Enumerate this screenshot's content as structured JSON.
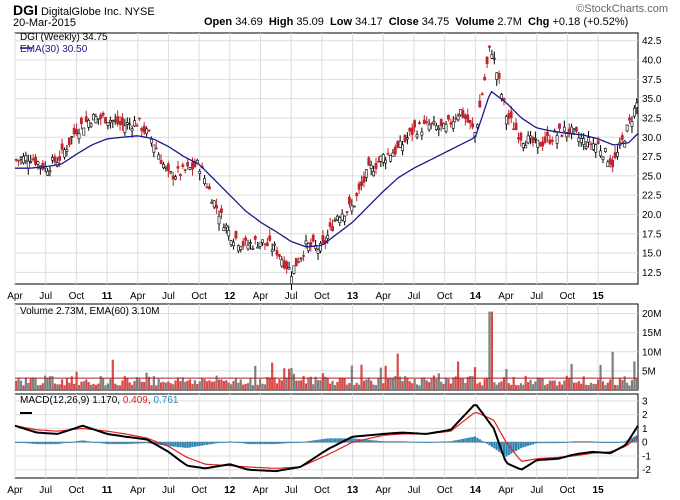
{
  "header": {
    "symbol": "DGI",
    "company": "DigitalGlobe Inc.",
    "exchange": "NYSE",
    "date": "20-Mar-2015",
    "watermark": "©StockCharts.com",
    "quote": {
      "open_label": "Open",
      "open": "34.69",
      "high_label": "High",
      "high": "35.09",
      "low_label": "Low",
      "low": "34.17",
      "close_label": "Close",
      "close": "34.75",
      "volume_label": "Volume",
      "volume": "2.7M",
      "chg_label": "Chg",
      "chg": "+0.18 (+0.52%)"
    }
  },
  "colors": {
    "up": "#000000",
    "down": "#c0242c",
    "ema": "#1a1a8c",
    "vol_up": "#7f7f7f",
    "vol_down": "#d94a4a",
    "macd": "#000000",
    "signal": "#e02020",
    "hist": "#2f86b5",
    "grid": "#dcdcdc"
  },
  "chart_data": [
    {
      "type": "candlestick",
      "title": "DGI (Weekly) 34.75",
      "legend": [
        "DGI (Weekly) 34.75",
        "EMA(30) 30.50"
      ],
      "y_ticks": [
        "12.5",
        "15.0",
        "17.5",
        "20.0",
        "22.5",
        "25.0",
        "27.5",
        "30.0",
        "32.5",
        "35.0",
        "37.5",
        "40.0",
        "42.5"
      ],
      "y_range": [
        11.0,
        43.5
      ],
      "x_ticks": [
        "Apr",
        "Jul",
        "Oct",
        "11",
        "Apr",
        "Jul",
        "Oct",
        "12",
        "Apr",
        "Jul",
        "Oct",
        "13",
        "Apr",
        "Jul",
        "Oct",
        "14",
        "Apr",
        "Jul",
        "Oct",
        "15"
      ],
      "x_range": [
        0,
        20.3
      ],
      "ema_period": 30,
      "grid": true,
      "close_points": [
        [
          0,
          27.0
        ],
        [
          0.5,
          27.5
        ],
        [
          1,
          26.0
        ],
        [
          1.5,
          27.5
        ],
        [
          2,
          31.0
        ],
        [
          2.5,
          32.5
        ],
        [
          3,
          32.5
        ],
        [
          3.5,
          31.5
        ],
        [
          4,
          32.0
        ],
        [
          4.5,
          29.5
        ],
        [
          5,
          25.0
        ],
        [
          5.5,
          25.5
        ],
        [
          6,
          26.5
        ],
        [
          6.5,
          21.5
        ],
        [
          7,
          17.5
        ],
        [
          7.5,
          16.0
        ],
        [
          8,
          16.5
        ],
        [
          8.5,
          15.5
        ],
        [
          9,
          12.5
        ],
        [
          9.5,
          16.0
        ],
        [
          10,
          15.5
        ],
        [
          10.5,
          20.0
        ],
        [
          11,
          21.0
        ],
        [
          11.5,
          25.5
        ],
        [
          12,
          27.5
        ],
        [
          12.5,
          28.5
        ],
        [
          13,
          31.0
        ],
        [
          13.5,
          31.5
        ],
        [
          14,
          31.0
        ],
        [
          14.5,
          33.5
        ],
        [
          15,
          30.5
        ],
        [
          15.5,
          42.0
        ],
        [
          16,
          33.0
        ],
        [
          16.5,
          30.0
        ],
        [
          17,
          29.0
        ],
        [
          17.5,
          30.0
        ],
        [
          18,
          31.0
        ],
        [
          18.5,
          29.5
        ],
        [
          19,
          29.0
        ],
        [
          19.5,
          26.5
        ],
        [
          20,
          31.5
        ],
        [
          20.3,
          34.75
        ]
      ],
      "ema_points": [
        [
          0,
          26.0
        ],
        [
          0.5,
          26.0
        ],
        [
          1,
          26.2
        ],
        [
          1.5,
          26.5
        ],
        [
          2,
          27.8
        ],
        [
          2.5,
          29.0
        ],
        [
          3,
          29.8
        ],
        [
          3.5,
          30.0
        ],
        [
          4,
          30.2
        ],
        [
          4.5,
          29.8
        ],
        [
          5,
          28.8
        ],
        [
          5.5,
          27.5
        ],
        [
          6,
          26.5
        ],
        [
          6.5,
          24.5
        ],
        [
          7,
          22.5
        ],
        [
          7.5,
          20.5
        ],
        [
          8,
          19.0
        ],
        [
          8.5,
          17.8
        ],
        [
          9,
          16.5
        ],
        [
          9.5,
          15.8
        ],
        [
          10,
          16.0
        ],
        [
          10.5,
          17.5
        ],
        [
          11,
          19.0
        ],
        [
          11.5,
          21.0
        ],
        [
          12,
          23.0
        ],
        [
          12.5,
          24.8
        ],
        [
          13,
          26.0
        ],
        [
          13.5,
          27.0
        ],
        [
          14,
          28.0
        ],
        [
          14.5,
          29.0
        ],
        [
          15,
          30.0
        ],
        [
          15.5,
          36.0
        ],
        [
          16,
          34.5
        ],
        [
          16.5,
          32.5
        ],
        [
          17,
          31.2
        ],
        [
          17.5,
          30.8
        ],
        [
          18,
          30.5
        ],
        [
          18.5,
          30.3
        ],
        [
          19,
          29.8
        ],
        [
          19.5,
          29.0
        ],
        [
          20,
          29.3
        ],
        [
          20.3,
          30.5
        ]
      ]
    },
    {
      "type": "bar",
      "title": "Volume 2.73M, EMA(60) 3.10M",
      "y_ticks": [
        "5M",
        "10M",
        "15M",
        "20M"
      ],
      "y_range": [
        0,
        22.5
      ],
      "unit": "M",
      "peak_points": [
        [
          15.0,
          6.0
        ],
        [
          15.5,
          20.5
        ],
        [
          16.0,
          5.5
        ],
        [
          12.5,
          9.5
        ],
        [
          19.5,
          10.0
        ],
        [
          20.2,
          7.5
        ]
      ],
      "ema_level": 3.1
    },
    {
      "type": "line",
      "title": "MACD(12,26,9) 1.170, 0.409, 0.761",
      "legend": [
        "MACD(12,26,9) 1.170",
        "0.409",
        "0.761"
      ],
      "y_ticks": [
        "3",
        "2",
        "1",
        "0",
        "-1",
        "-2"
      ],
      "y_range": [
        -2.6,
        3.5
      ],
      "macd_points": [
        [
          0,
          1.2
        ],
        [
          0.7,
          0.7
        ],
        [
          1.4,
          0.6
        ],
        [
          2.2,
          1.2
        ],
        [
          3.0,
          0.6
        ],
        [
          3.6,
          0.4
        ],
        [
          4.3,
          0.2
        ],
        [
          5.0,
          -0.7
        ],
        [
          5.6,
          -1.7
        ],
        [
          6.2,
          -1.9
        ],
        [
          7.0,
          -1.6
        ],
        [
          7.6,
          -2.0
        ],
        [
          8.5,
          -2.1
        ],
        [
          9.3,
          -1.8
        ],
        [
          10.2,
          -0.5
        ],
        [
          11.0,
          0.4
        ],
        [
          12.0,
          0.6
        ],
        [
          12.6,
          0.7
        ],
        [
          13.4,
          0.6
        ],
        [
          14.2,
          0.9
        ],
        [
          15.0,
          2.8
        ],
        [
          15.6,
          1.0
        ],
        [
          16.0,
          -1.5
        ],
        [
          16.5,
          -2.0
        ],
        [
          17.0,
          -1.3
        ],
        [
          17.7,
          -1.2
        ],
        [
          18.2,
          -0.9
        ],
        [
          18.8,
          -0.7
        ],
        [
          19.4,
          -0.8
        ],
        [
          19.9,
          -0.2
        ],
        [
          20.3,
          1.2
        ]
      ],
      "signal_points": [
        [
          0,
          1.2
        ],
        [
          0.7,
          0.9
        ],
        [
          1.4,
          0.8
        ],
        [
          2.2,
          1.0
        ],
        [
          3.0,
          0.8
        ],
        [
          3.6,
          0.6
        ],
        [
          4.3,
          0.3
        ],
        [
          5.0,
          -0.3
        ],
        [
          5.6,
          -1.1
        ],
        [
          6.2,
          -1.6
        ],
        [
          7.0,
          -1.7
        ],
        [
          7.6,
          -1.8
        ],
        [
          8.5,
          -1.9
        ],
        [
          9.3,
          -1.8
        ],
        [
          10.2,
          -0.9
        ],
        [
          11.0,
          0.0
        ],
        [
          12.0,
          0.5
        ],
        [
          12.6,
          0.6
        ],
        [
          13.4,
          0.6
        ],
        [
          14.2,
          0.8
        ],
        [
          15.0,
          2.2
        ],
        [
          15.6,
          1.6
        ],
        [
          16.0,
          0.0
        ],
        [
          16.5,
          -1.4
        ],
        [
          17.0,
          -1.2
        ],
        [
          17.7,
          -1.1
        ],
        [
          18.2,
          -1.0
        ],
        [
          18.8,
          -0.8
        ],
        [
          19.4,
          -0.7
        ],
        [
          19.9,
          -0.3
        ],
        [
          20.3,
          0.4
        ]
      ]
    }
  ]
}
